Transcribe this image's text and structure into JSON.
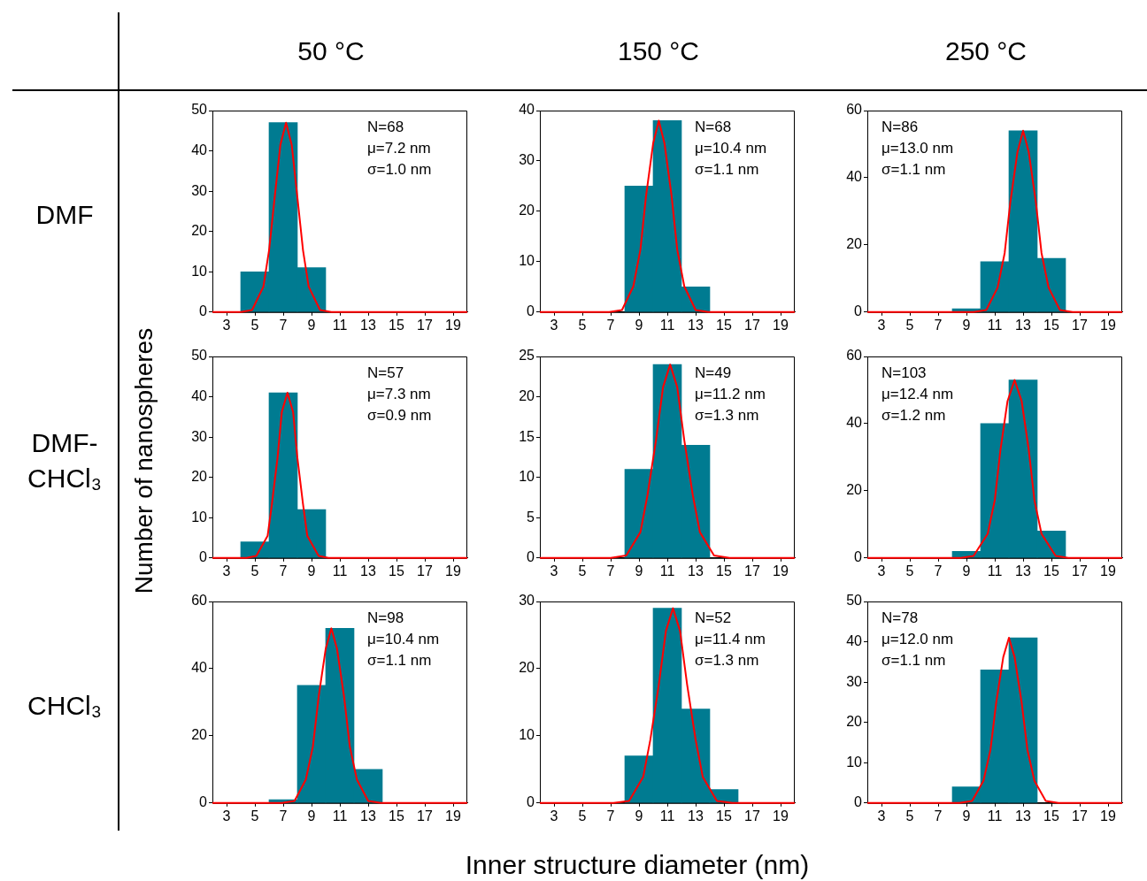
{
  "chart_data": [
    {
      "type": "histogram",
      "title": "50 °C",
      "subtitle": "DMF",
      "bins": [
        4,
        6,
        8,
        10
      ],
      "values": [
        10,
        47,
        11
      ],
      "color": "#007b91",
      "xlim": [
        2,
        20
      ],
      "xticks": [
        3,
        5,
        7,
        9,
        11,
        13,
        15,
        17,
        19
      ],
      "ylim": [
        0,
        50
      ],
      "yticks": [
        0,
        10,
        20,
        30,
        40,
        50
      ],
      "annotations": [
        "N=68",
        "μ=7.2 nm",
        "σ=1.0 nm"
      ],
      "series": [
        {
          "type": "line",
          "color": "#ff0000",
          "x": [
            2,
            4.0,
            4.8,
            5.6,
            6.0,
            6.4,
            6.8,
            7.2,
            7.6,
            8.0,
            8.4,
            8.8,
            9.6,
            10.4,
            20
          ],
          "values": [
            0,
            0,
            0.5,
            6.3,
            15.3,
            28.5,
            41.5,
            47,
            41.5,
            28.5,
            15.3,
            6.3,
            0.5,
            0,
            0
          ]
        }
      ]
    },
    {
      "type": "histogram",
      "title": "150 °C",
      "bins": [
        8,
        10,
        12,
        14
      ],
      "values": [
        25,
        38,
        5
      ],
      "color": "#007b91",
      "xlim": [
        2,
        20
      ],
      "xticks": [
        3,
        5,
        7,
        9,
        11,
        13,
        15,
        17,
        19
      ],
      "ylim": [
        0,
        40
      ],
      "yticks": [
        0,
        10,
        20,
        30,
        40
      ],
      "annotations": [
        "N=68",
        "μ=10.4 nm",
        "σ=1.1 nm"
      ],
      "series": [
        {
          "type": "line",
          "color": "#ff0000",
          "x": [
            2,
            6.9,
            7.8,
            8.6,
            9.1,
            9.5,
            10.0,
            10.4,
            10.8,
            11.3,
            11.7,
            12.2,
            13.0,
            13.9,
            20
          ],
          "values": [
            0,
            0,
            0.4,
            5.1,
            12.4,
            23.1,
            33.5,
            38,
            33.5,
            23.1,
            12.4,
            5.1,
            0.4,
            0,
            0
          ]
        }
      ]
    },
    {
      "type": "histogram",
      "title": "250 °C",
      "bins": [
        8,
        10,
        12,
        14,
        16
      ],
      "values": [
        1,
        15,
        54,
        16
      ],
      "color": "#007b91",
      "xlim": [
        2,
        20
      ],
      "xticks": [
        3,
        5,
        7,
        9,
        11,
        13,
        15,
        17,
        19
      ],
      "ylim": [
        0,
        60
      ],
      "yticks": [
        0,
        20,
        40,
        60
      ],
      "annotations": [
        "N=86",
        "μ=13.0 nm",
        "σ=1.1 nm"
      ],
      "series": [
        {
          "type": "line",
          "color": "#ff0000",
          "x": [
            2,
            9.5,
            10.4,
            11.2,
            11.7,
            12.1,
            12.6,
            13,
            13.4,
            13.9,
            14.3,
            14.8,
            15.6,
            16.5,
            20
          ],
          "values": [
            0,
            0,
            0.6,
            7.3,
            17.6,
            32.8,
            47.6,
            54,
            47.6,
            32.8,
            17.6,
            7.3,
            0.6,
            0,
            0
          ]
        }
      ]
    },
    {
      "type": "histogram",
      "subtitle": "DMF-CHCl₃",
      "ylabel": "Number of nanospheres",
      "bins": [
        4,
        6,
        8,
        10
      ],
      "values": [
        4,
        41,
        12
      ],
      "color": "#007b91",
      "xlim": [
        2,
        20
      ],
      "xticks": [
        3,
        5,
        7,
        9,
        11,
        13,
        15,
        17,
        19
      ],
      "ylim": [
        0,
        50
      ],
      "yticks": [
        0,
        10,
        20,
        30,
        40,
        50
      ],
      "annotations": [
        "N=57",
        "μ=7.3 nm",
        "σ=0.9 nm"
      ],
      "series": [
        {
          "type": "line",
          "color": "#ff0000",
          "x": [
            2,
            4.4,
            5.1,
            5.9,
            6.2,
            6.6,
            6.9,
            7.3,
            7.7,
            8.0,
            8.4,
            8.7,
            9.5,
            10.2,
            20
          ],
          "values": [
            0,
            0,
            0.5,
            5.5,
            13.3,
            24.9,
            36.2,
            41,
            36.2,
            24.9,
            13.3,
            5.5,
            0.5,
            0,
            0
          ]
        }
      ]
    },
    {
      "type": "histogram",
      "bins": [
        8,
        10,
        12,
        14
      ],
      "values": [
        11,
        24,
        14
      ],
      "color": "#007b91",
      "xlim": [
        2,
        20
      ],
      "xticks": [
        3,
        5,
        7,
        9,
        11,
        13,
        15,
        17,
        19
      ],
      "ylim": [
        0,
        25
      ],
      "yticks": [
        0,
        5,
        10,
        15,
        20,
        25
      ],
      "annotations": [
        "N=49",
        "μ=11.2 nm",
        "σ=1.3 nm"
      ],
      "series": [
        {
          "type": "line",
          "color": "#ff0000",
          "x": [
            2,
            7.0,
            8.1,
            9.1,
            9.6,
            10.2,
            10.7,
            11.2,
            11.7,
            12.2,
            12.8,
            13.3,
            14.3,
            15.4,
            20
          ],
          "values": [
            0,
            0,
            0.3,
            3.2,
            7.8,
            14.6,
            21.2,
            24,
            21.2,
            14.6,
            7.8,
            3.2,
            0.3,
            0,
            0
          ]
        }
      ]
    },
    {
      "type": "histogram",
      "bins": [
        8,
        10,
        12,
        14,
        16
      ],
      "values": [
        2,
        40,
        53,
        8
      ],
      "color": "#007b91",
      "xlim": [
        2,
        20
      ],
      "xticks": [
        3,
        5,
        7,
        9,
        11,
        13,
        15,
        17,
        19
      ],
      "ylim": [
        0,
        60
      ],
      "yticks": [
        0,
        20,
        40,
        60
      ],
      "annotations": [
        "N=103",
        "μ=12.4 nm",
        "σ=1.2 nm"
      ],
      "series": [
        {
          "type": "line",
          "color": "#ff0000",
          "x": [
            2,
            8.6,
            9.5,
            10.5,
            11.0,
            11.4,
            11.9,
            12.4,
            12.9,
            13.4,
            13.8,
            14.3,
            15.3,
            16.2,
            20
          ],
          "values": [
            0,
            0,
            0.6,
            7.2,
            17.2,
            32.2,
            46.7,
            53,
            46.7,
            32.2,
            17.2,
            7.2,
            0.6,
            0,
            0
          ]
        }
      ]
    },
    {
      "type": "histogram",
      "subtitle": "CHCl₃",
      "bins": [
        6,
        8,
        10,
        12,
        14
      ],
      "values": [
        1,
        35,
        52,
        10
      ],
      "color": "#007b91",
      "xlim": [
        2,
        20
      ],
      "xticks": [
        3,
        5,
        7,
        9,
        11,
        13,
        15,
        17,
        19
      ],
      "ylim": [
        0,
        60
      ],
      "yticks": [
        0,
        20,
        40,
        60
      ],
      "annotations": [
        "N=98",
        "μ=10.4 nm",
        "σ=1.1 nm"
      ],
      "series": [
        {
          "type": "line",
          "color": "#ff0000",
          "x": [
            2,
            6.9,
            7.8,
            8.6,
            9.1,
            9.5,
            10.0,
            10.4,
            10.8,
            11.3,
            11.7,
            12.2,
            13.0,
            13.9,
            20
          ],
          "values": [
            0,
            0,
            0.6,
            7.0,
            16.9,
            31.6,
            45.9,
            52,
            45.9,
            31.6,
            16.9,
            7.0,
            0.6,
            0,
            0
          ]
        }
      ]
    },
    {
      "type": "histogram",
      "xlabel": "Inner structure diameter (nm)",
      "bins": [
        8,
        10,
        12,
        14,
        16
      ],
      "values": [
        7,
        29,
        14,
        2
      ],
      "color": "#007b91",
      "xlim": [
        2,
        20
      ],
      "xticks": [
        3,
        5,
        7,
        9,
        11,
        13,
        15,
        17,
        19
      ],
      "ylim": [
        0,
        30
      ],
      "yticks": [
        0,
        10,
        20,
        30
      ],
      "annotations": [
        "N=52",
        "μ=11.4 nm",
        "σ=1.3 nm"
      ],
      "series": [
        {
          "type": "line",
          "color": "#ff0000",
          "x": [
            2,
            7.2,
            8.3,
            9.3,
            9.8,
            10.4,
            10.9,
            11.4,
            11.9,
            12.4,
            13.0,
            13.5,
            14.5,
            15.6,
            20
          ],
          "values": [
            0,
            0,
            0.3,
            3.9,
            9.4,
            17.6,
            25.6,
            29,
            25.6,
            17.6,
            9.4,
            3.9,
            0.3,
            0,
            0
          ]
        }
      ]
    },
    {
      "type": "histogram",
      "bins": [
        8,
        10,
        12,
        14
      ],
      "values": [
        4,
        33,
        41
      ],
      "color": "#007b91",
      "xlim": [
        2,
        20
      ],
      "xticks": [
        3,
        5,
        7,
        9,
        11,
        13,
        15,
        17,
        19
      ],
      "ylim": [
        0,
        50
      ],
      "yticks": [
        0,
        10,
        20,
        30,
        40,
        50
      ],
      "annotations": [
        "N=78",
        "μ=12.0 nm",
        "σ=1.1 nm"
      ],
      "series": [
        {
          "type": "line",
          "color": "#ff0000",
          "x": [
            2,
            8.5,
            9.4,
            10.2,
            10.7,
            11.1,
            11.6,
            12.0,
            12.4,
            12.9,
            13.3,
            13.8,
            14.6,
            15.5,
            20
          ],
          "values": [
            0,
            0,
            0.5,
            5.5,
            13.3,
            24.9,
            36.2,
            41,
            36.2,
            24.9,
            13.3,
            5.5,
            0.5,
            0,
            0
          ]
        }
      ]
    }
  ]
}
